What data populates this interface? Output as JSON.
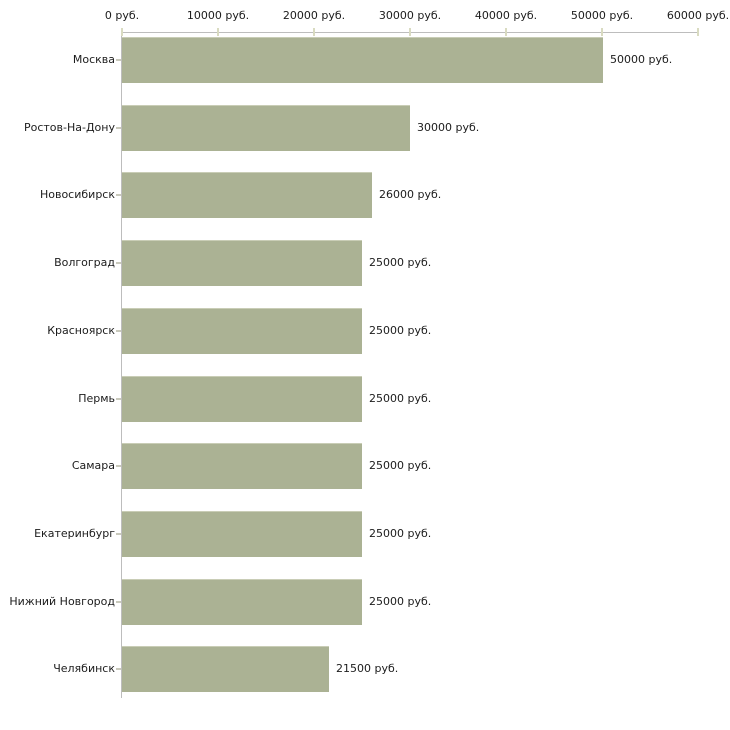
{
  "chart_data": {
    "type": "bar",
    "orientation": "horizontal",
    "title": "",
    "xlabel": "",
    "ylabel": "",
    "currency_suffix": "руб.",
    "xlim": [
      0,
      60000
    ],
    "x_tick_values": [
      0,
      10000,
      20000,
      30000,
      40000,
      50000,
      60000
    ],
    "x_tick_labels": [
      "0 руб.",
      "10000 руб.",
      "20000 руб.",
      "30000 руб.",
      "40000 руб.",
      "50000 руб.",
      "60000 руб."
    ],
    "categories": [
      "Москва",
      "Ростов-На-Дону",
      "Новосибирск",
      "Волгоград",
      "Красноярск",
      "Пермь",
      "Самара",
      "Екатеринбург",
      "Нижний Новгород",
      "Челябинск"
    ],
    "values": [
      50000,
      30000,
      26000,
      25000,
      25000,
      25000,
      25000,
      25000,
      25000,
      21500
    ],
    "value_labels": [
      "50000 руб.",
      "30000 руб.",
      "26000 руб.",
      "25000 руб.",
      "25000 руб.",
      "25000 руб.",
      "25000 руб.",
      "25000 руб.",
      "25000 руб.",
      "21500 руб."
    ],
    "bar_color": "#abb294",
    "bar_edge_color": "#c9cdb6",
    "axis_line_color": "#bdbdbd",
    "x_tick_color": "#d9dbc1",
    "y_tick_color": "#c9c9bc",
    "text_color": "#1c1c1c",
    "background_color": "#ffffff",
    "grid": false,
    "legend": false
  }
}
